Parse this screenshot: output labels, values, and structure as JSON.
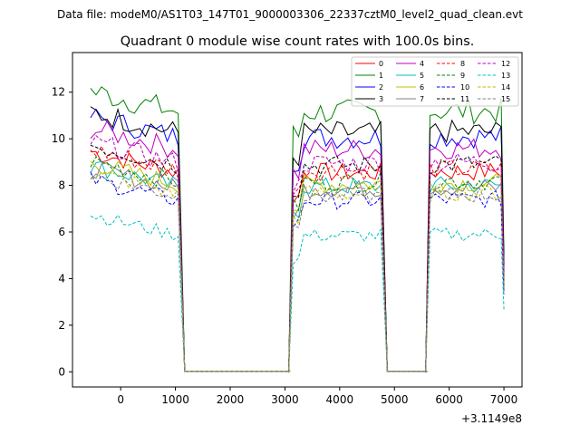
{
  "chart_data": {
    "type": "line",
    "suptitle": "Data file: modeM0/AS1T03_147T01_9000003306_22337cztM0_level2_quad_clean.evt",
    "title": "Quadrant 0 module wise count rates with 100.0s bins.",
    "xlabel": "",
    "ylabel": "",
    "x_offset_label": "+3.1149e8",
    "xlim": [
      -880,
      7330
    ],
    "ylim": [
      -0.65,
      13.7
    ],
    "xticks": [
      0,
      1000,
      2000,
      3000,
      4000,
      5000,
      6000,
      7000
    ],
    "yticks": [
      0,
      2,
      4,
      6,
      8,
      10,
      12
    ],
    "legend_position": "top-right",
    "legend_columns": 4,
    "segments": [
      {
        "start": -550,
        "end": 1050
      },
      {
        "start": 3150,
        "end": 4750
      },
      {
        "start": 5650,
        "end": 6950
      }
    ],
    "series": [
      {
        "name": "0",
        "color": "#ff0000",
        "dash": "solid",
        "level": 8.6
      },
      {
        "name": "1",
        "color": "#008000",
        "dash": "solid",
        "level": 11.2
      },
      {
        "name": "2",
        "color": "#0000ff",
        "dash": "solid",
        "level": 10.1
      },
      {
        "name": "3",
        "color": "#000000",
        "dash": "solid",
        "level": 10.3
      },
      {
        "name": "4",
        "color": "#bf00bf",
        "dash": "solid",
        "level": 9.6
      },
      {
        "name": "5",
        "color": "#00bfbf",
        "dash": "solid",
        "level": 8.0
      },
      {
        "name": "6",
        "color": "#bfbf00",
        "dash": "solid",
        "level": 8.1
      },
      {
        "name": "7",
        "color": "#808080",
        "dash": "solid",
        "level": 7.9
      },
      {
        "name": "8",
        "color": "#ff0000",
        "dash": "dashed",
        "level": 8.7
      },
      {
        "name": "9",
        "color": "#008000",
        "dash": "dashed",
        "level": 8.2
      },
      {
        "name": "10",
        "color": "#0000ff",
        "dash": "dashed",
        "level": 7.4
      },
      {
        "name": "11",
        "color": "#000000",
        "dash": "dashed",
        "level": 8.9
      },
      {
        "name": "12",
        "color": "#bf00bf",
        "dash": "dashed",
        "level": 9.0
      },
      {
        "name": "13",
        "color": "#00bfbf",
        "dash": "dashed",
        "level": 5.9
      },
      {
        "name": "14",
        "color": "#bfbf00",
        "dash": "dashed",
        "level": 7.7
      },
      {
        "name": "15",
        "color": "#808080",
        "dash": "dashed",
        "level": 7.6
      }
    ]
  }
}
